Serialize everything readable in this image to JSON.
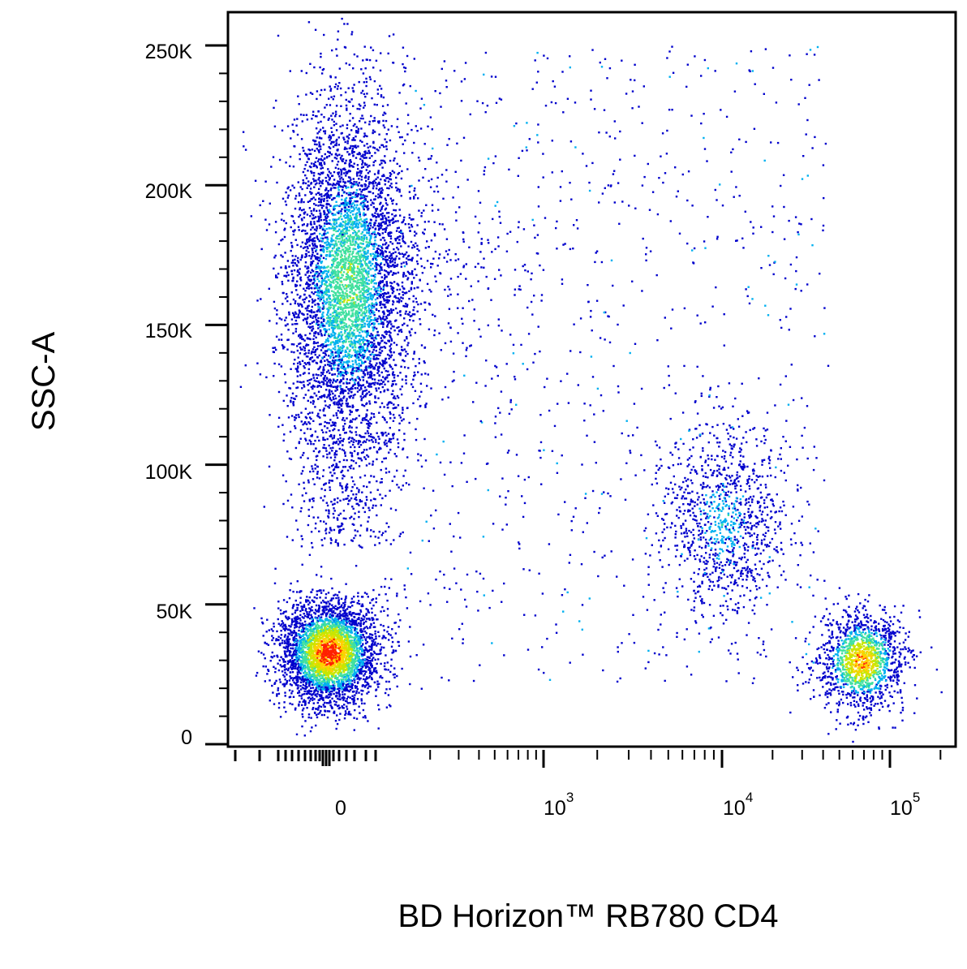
{
  "chart_data": {
    "type": "scatter",
    "subtype": "flow-cytometry-density-dot-plot",
    "xlabel": "BD Horizon™ RB780 CD4",
    "ylabel": "SSC-A",
    "x_scale": "biexponential",
    "y_scale": "linear",
    "xlim": [
      -200,
      200000
    ],
    "ylim": [
      0,
      262144
    ],
    "y_ticks": [
      {
        "value": 250000,
        "label": "250K"
      },
      {
        "value": 200000,
        "label": "200K"
      },
      {
        "value": 150000,
        "label": "150K"
      },
      {
        "value": 100000,
        "label": "100K"
      },
      {
        "value": 50000,
        "label": "50K"
      },
      {
        "value": 0,
        "label": "0"
      }
    ],
    "x_ticks": [
      {
        "value": 0,
        "base": "0",
        "exponent": ""
      },
      {
        "value": 1000,
        "base": "10",
        "exponent": "3"
      },
      {
        "value": 10000,
        "base": "10",
        "exponent": "4"
      },
      {
        "value": 100000,
        "base": "10",
        "exponent": "5"
      }
    ],
    "color_scale": [
      "#0000cc",
      "#00b0f0",
      "#40e0a0",
      "#c8e600",
      "#ffd000",
      "#ff2000"
    ],
    "populations": [
      {
        "x_center": 0,
        "y_center": 165000,
        "x_spread": "narrow",
        "y_spread": 95000,
        "relative_density": "high"
      },
      {
        "x_center": 0,
        "y_center": 33000,
        "x_spread": "narrow",
        "y_spread": 15000,
        "relative_density": "very-high"
      },
      {
        "x_center": 10000,
        "y_center": 80000,
        "x_spread": "medium",
        "y_spread": 40000,
        "relative_density": "low"
      },
      {
        "x_center": 60000,
        "y_center": 30000,
        "x_spread": "narrow",
        "y_spread": 15000,
        "relative_density": "high"
      },
      {
        "x_center": 1000,
        "y_center": 175000,
        "x_spread": "wide",
        "y_spread": 70000,
        "relative_density": "sparse"
      }
    ],
    "grid": false,
    "legend": "none"
  }
}
